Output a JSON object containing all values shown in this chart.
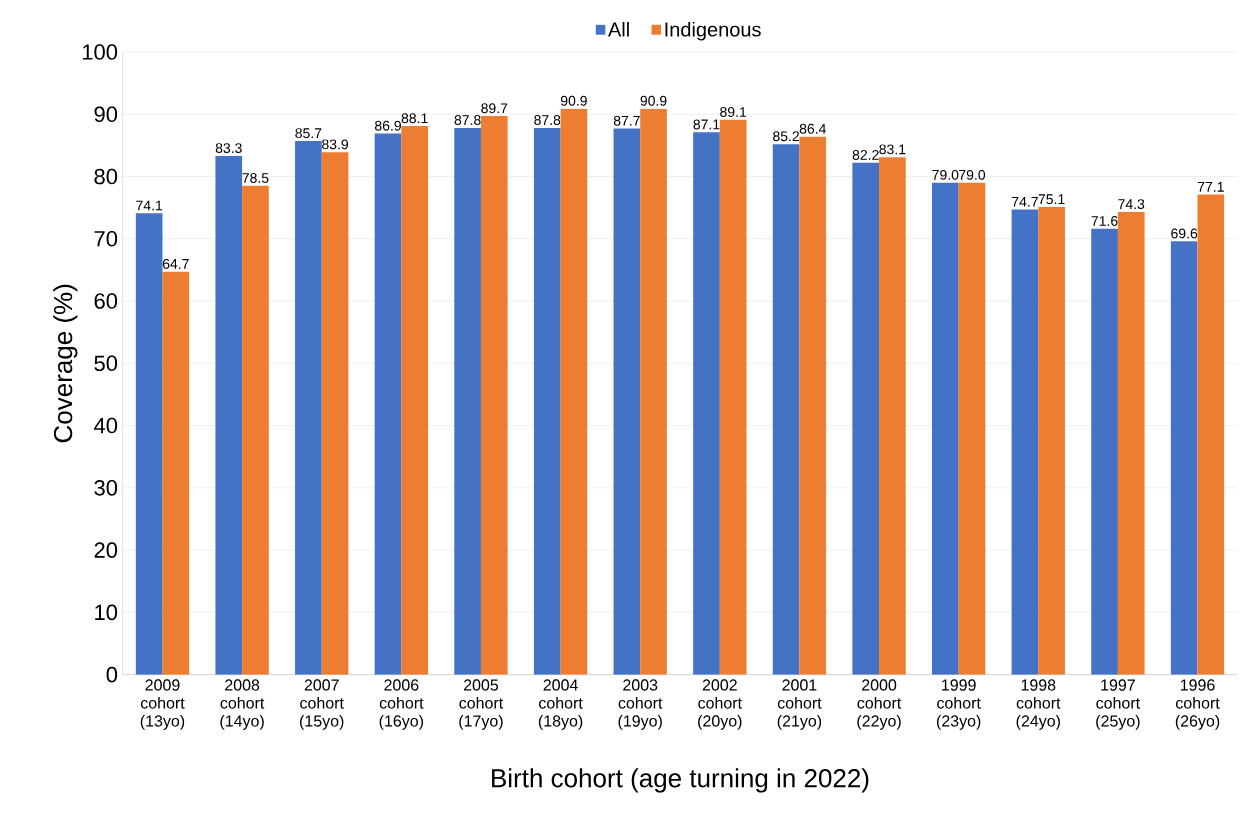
{
  "chart_data": {
    "type": "bar",
    "xlabel": "Birth cohort (age turning in 2022)",
    "ylabel": "Coverage (%)",
    "categories": [
      "2009 cohort (13yo)",
      "2008 cohort (14yo)",
      "2007 cohort (15yo)",
      "2006 cohort (16yo)",
      "2005 cohort (17yo)",
      "2004 cohort (18yo)",
      "2003 cohort (19yo)",
      "2002 cohort (20yo)",
      "2001 cohort (21yo)",
      "2000 cohort (22yo)",
      "1999 cohort (23yo)",
      "1998 cohort (24yo)",
      "1997 cohort (25yo)",
      "1996 cohort (26yo)"
    ],
    "series": [
      {
        "name": "All",
        "color": "#4472c4",
        "values": [
          74.1,
          83.3,
          85.7,
          86.9,
          87.8,
          87.8,
          87.7,
          87.1,
          85.2,
          82.2,
          79.0,
          74.7,
          71.6,
          69.6
        ],
        "value_labels": [
          "74.1",
          "83.3",
          "85.7",
          "86.9",
          "87.8",
          "87.8",
          "87.7",
          "87.1",
          "85.2",
          "82.2",
          "79.0",
          "74.7",
          "71.6",
          "69.6"
        ]
      },
      {
        "name": "Indigenous",
        "color": "#ed7d31",
        "values": [
          64.7,
          78.5,
          83.9,
          88.1,
          89.7,
          90.9,
          90.9,
          89.1,
          86.4,
          83.1,
          79.0,
          75.1,
          74.3,
          77.1
        ],
        "value_labels": [
          "64.7",
          "78.5",
          "83.9",
          "88.1",
          "89.7",
          "90.9",
          "90.9",
          "89.1",
          "86.4",
          "83.1",
          "79.0",
          "75.1",
          "74.3",
          "77.1"
        ]
      }
    ],
    "ylim": [
      0,
      100
    ],
    "yticks": [
      0,
      10,
      20,
      30,
      40,
      50,
      60,
      70,
      80,
      90,
      100
    ],
    "grid": "y",
    "legend": "top"
  }
}
